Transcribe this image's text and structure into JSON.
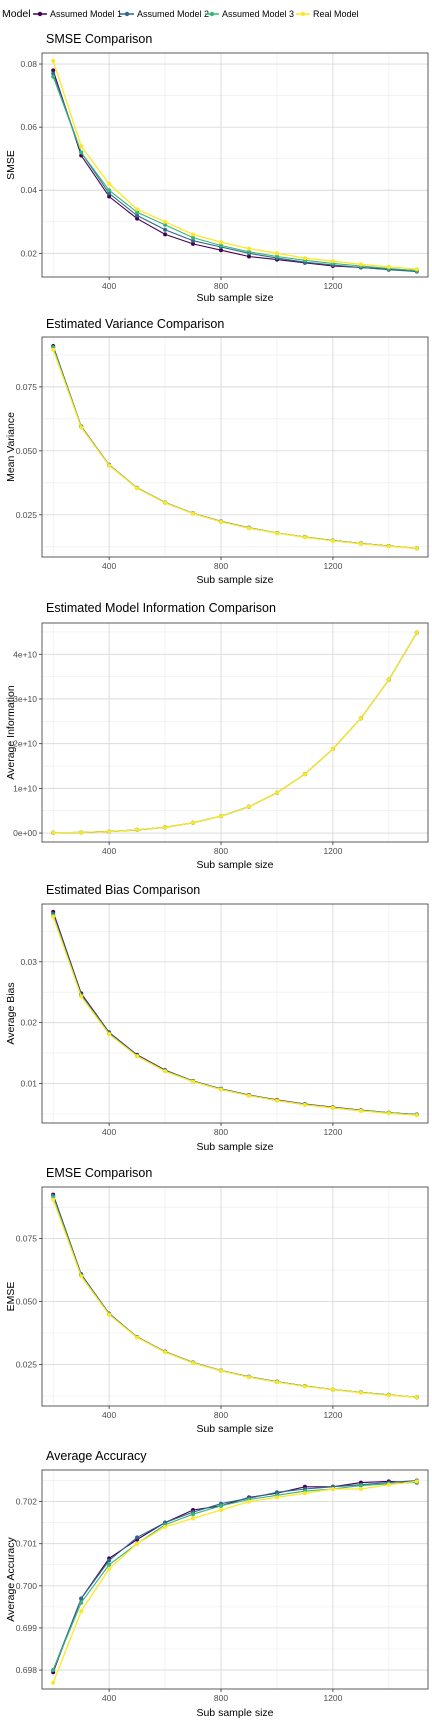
{
  "legend": {
    "title": "Model",
    "items": [
      {
        "label": "Assumed Model 1",
        "color": "#440154"
      },
      {
        "label": "Assumed Model 2",
        "color": "#31688E"
      },
      {
        "label": "Assumed Model 3",
        "color": "#35B779"
      },
      {
        "label": "Real Model",
        "color": "#FDE725"
      }
    ]
  },
  "chart_data": [
    {
      "type": "line",
      "title": "SMSE Comparison",
      "xlabel": "Sub sample size",
      "ylabel": "SMSE",
      "xlim": [
        160,
        1540
      ],
      "ylim": [
        0.0125,
        0.0835
      ],
      "xticks": [
        400,
        800,
        1200
      ],
      "xtick_labels": [
        "400",
        "800",
        "1200"
      ],
      "yticks": [
        0.02,
        0.04,
        0.06,
        0.08
      ],
      "ytick_labels": [
        "0.02",
        "0.04",
        "0.06",
        "0.08"
      ],
      "grid": true,
      "x": [
        200,
        300,
        400,
        500,
        600,
        700,
        800,
        900,
        1000,
        1100,
        1200,
        1300,
        1400,
        1500
      ],
      "series": [
        {
          "name": "Assumed Model 1",
          "values": [
            0.078,
            0.051,
            0.038,
            0.031,
            0.026,
            0.023,
            0.021,
            0.019,
            0.018,
            0.017,
            0.016,
            0.0155,
            0.015,
            0.0145
          ]
        },
        {
          "name": "Assumed Model 2",
          "values": [
            0.077,
            0.052,
            0.039,
            0.032,
            0.0275,
            0.024,
            0.022,
            0.02,
            0.0185,
            0.0172,
            0.0163,
            0.0155,
            0.0148,
            0.0142
          ]
        },
        {
          "name": "Assumed Model 3",
          "values": [
            0.076,
            0.052,
            0.04,
            0.033,
            0.029,
            0.025,
            0.0225,
            0.0205,
            0.019,
            0.0178,
            0.0168,
            0.016,
            0.0152,
            0.0145
          ]
        },
        {
          "name": "Real Model",
          "values": [
            0.081,
            0.054,
            0.042,
            0.034,
            0.03,
            0.026,
            0.0235,
            0.0215,
            0.02,
            0.0185,
            0.0175,
            0.0165,
            0.0157,
            0.015
          ]
        }
      ]
    },
    {
      "type": "line",
      "title": "Estimated Variance Comparison",
      "xlabel": "Sub sample size",
      "ylabel": "Mean Variance",
      "xlim": [
        160,
        1540
      ],
      "ylim": [
        0.0085,
        0.0945
      ],
      "xticks": [
        400,
        800,
        1200
      ],
      "xtick_labels": [
        "400",
        "800",
        "1200"
      ],
      "yticks": [
        0.025,
        0.05,
        0.075
      ],
      "ytick_labels": [
        "0.025",
        "0.050",
        "0.075"
      ],
      "grid": true,
      "x": [
        200,
        300,
        400,
        500,
        600,
        700,
        800,
        900,
        1000,
        1100,
        1200,
        1300,
        1400,
        1500
      ],
      "series": [
        {
          "name": "Assumed Model 1",
          "values": [
            0.091,
            0.0595,
            0.0445,
            0.0355,
            0.0298,
            0.0256,
            0.0224,
            0.0199,
            0.0179,
            0.0163,
            0.0149,
            0.0138,
            0.0128,
            0.0119
          ]
        },
        {
          "name": "Assumed Model 2",
          "values": [
            0.0905,
            0.0595,
            0.0445,
            0.0355,
            0.0298,
            0.0256,
            0.0224,
            0.0199,
            0.0179,
            0.0163,
            0.0149,
            0.0138,
            0.0128,
            0.0119
          ]
        },
        {
          "name": "Assumed Model 3",
          "values": [
            0.0905,
            0.0592,
            0.0443,
            0.0355,
            0.0297,
            0.0255,
            0.0223,
            0.0198,
            0.0179,
            0.0163,
            0.0149,
            0.0137,
            0.0128,
            0.0119
          ]
        },
        {
          "name": "Real Model",
          "values": [
            0.0895,
            0.0592,
            0.0443,
            0.0354,
            0.0297,
            0.0255,
            0.0223,
            0.0198,
            0.0178,
            0.0162,
            0.0148,
            0.0137,
            0.0127,
            0.0119
          ]
        }
      ]
    },
    {
      "type": "line",
      "title": "Estimated Model Information Comparison",
      "xlabel": "Sub sample size",
      "ylabel": "Average Information",
      "xlim": [
        160,
        1540
      ],
      "ylim": [
        -2000000000,
        47000000000
      ],
      "xticks": [
        400,
        800,
        1200
      ],
      "xtick_labels": [
        "400",
        "800",
        "1200"
      ],
      "yticks": [
        0,
        10000000000,
        20000000000,
        30000000000,
        40000000000
      ],
      "ytick_labels": [
        "0e+00",
        "1e+10",
        "2e+10",
        "3e+10",
        "4e+10"
      ],
      "grid": true,
      "x": [
        200,
        300,
        400,
        500,
        600,
        700,
        800,
        900,
        1000,
        1100,
        1200,
        1300,
        1400,
        1500
      ],
      "series": [
        {
          "name": "Assumed Model 1",
          "values": [
            50000000,
            150000000,
            330000000,
            700000000,
            1300000000,
            2300000000,
            3800000000,
            5900000000,
            9000000000,
            13200000000,
            18800000000,
            25700000000,
            34300000000,
            44800000000
          ]
        },
        {
          "name": "Assumed Model 2",
          "values": [
            50000000,
            150000000,
            330000000,
            700000000,
            1300000000,
            2300000000,
            3800000000,
            5900000000,
            9000000000,
            13200000000,
            18800000000,
            25700000000,
            34300000000,
            44800000000
          ]
        },
        {
          "name": "Assumed Model 3",
          "values": [
            50000000,
            150000000,
            330000000,
            700000000,
            1300000000,
            2300000000,
            3800000000,
            5900000000,
            9000000000,
            13200000000,
            18800000000,
            25700000000,
            34300000000,
            44800000000
          ]
        },
        {
          "name": "Real Model",
          "values": [
            50000000,
            150000000,
            330000000,
            700000000,
            1300000000,
            2300000000,
            3800000000,
            5900000000,
            9000000000,
            13200000000,
            18800000000,
            25700000000,
            34300000000,
            44800000000
          ]
        }
      ]
    },
    {
      "type": "line",
      "title": "Estimated Bias Comparison",
      "xlabel": "Sub sample size",
      "ylabel": "Average Bias",
      "xlim": [
        160,
        1540
      ],
      "ylim": [
        0.0035,
        0.0395
      ],
      "xticks": [
        400,
        800,
        1200
      ],
      "xtick_labels": [
        "400",
        "800",
        "1200"
      ],
      "yticks": [
        0.01,
        0.02,
        0.03
      ],
      "ytick_labels": [
        "0.01",
        "0.02",
        "0.03"
      ],
      "grid": true,
      "x": [
        200,
        300,
        400,
        500,
        600,
        700,
        800,
        900,
        1000,
        1100,
        1200,
        1300,
        1400,
        1500
      ],
      "series": [
        {
          "name": "Assumed Model 1",
          "values": [
            0.0382,
            0.0248,
            0.0184,
            0.0147,
            0.0122,
            0.0104,
            0.0091,
            0.0081,
            0.0073,
            0.0066,
            0.0061,
            0.0056,
            0.0052,
            0.0049
          ]
        },
        {
          "name": "Assumed Model 2",
          "values": [
            0.0379,
            0.0246,
            0.0183,
            0.0146,
            0.0121,
            0.0104,
            0.0091,
            0.0081,
            0.0072,
            0.0066,
            0.006,
            0.0056,
            0.0052,
            0.0049
          ]
        },
        {
          "name": "Assumed Model 3",
          "values": [
            0.0376,
            0.0244,
            0.0182,
            0.0145,
            0.0121,
            0.0103,
            0.009,
            0.008,
            0.0072,
            0.0065,
            0.006,
            0.0055,
            0.0052,
            0.0048
          ]
        },
        {
          "name": "Real Model",
          "values": [
            0.0374,
            0.0243,
            0.0181,
            0.0145,
            0.012,
            0.0103,
            0.009,
            0.008,
            0.0072,
            0.0065,
            0.006,
            0.0055,
            0.0051,
            0.0048
          ]
        }
      ]
    },
    {
      "type": "line",
      "title": "EMSE Comparison",
      "xlabel": "Sub sample size",
      "ylabel": "EMSE",
      "xlim": [
        160,
        1540
      ],
      "ylim": [
        0.0085,
        0.0955
      ],
      "xticks": [
        400,
        800,
        1200
      ],
      "xtick_labels": [
        "400",
        "800",
        "1200"
      ],
      "yticks": [
        0.025,
        0.05,
        0.075
      ],
      "ytick_labels": [
        "0.025",
        "0.050",
        "0.075"
      ],
      "grid": true,
      "x": [
        200,
        300,
        400,
        500,
        600,
        700,
        800,
        900,
        1000,
        1100,
        1200,
        1300,
        1400,
        1500
      ],
      "series": [
        {
          "name": "Assumed Model 1",
          "values": [
            0.0925,
            0.0608,
            0.0452,
            0.0359,
            0.0301,
            0.0258,
            0.0226,
            0.0201,
            0.0181,
            0.0164,
            0.015,
            0.0139,
            0.0129,
            0.012
          ]
        },
        {
          "name": "Assumed Model 2",
          "values": [
            0.092,
            0.0606,
            0.0451,
            0.0359,
            0.03,
            0.0258,
            0.0226,
            0.0201,
            0.0181,
            0.0164,
            0.015,
            0.0139,
            0.0129,
            0.012
          ]
        },
        {
          "name": "Assumed Model 3",
          "values": [
            0.0915,
            0.0604,
            0.045,
            0.0358,
            0.0299,
            0.0257,
            0.0225,
            0.02,
            0.018,
            0.0164,
            0.015,
            0.0139,
            0.0129,
            0.012
          ]
        },
        {
          "name": "Real Model",
          "values": [
            0.0905,
            0.06,
            0.0448,
            0.0357,
            0.0299,
            0.0256,
            0.0225,
            0.02,
            0.018,
            0.0163,
            0.015,
            0.0138,
            0.0128,
            0.012
          ]
        }
      ]
    },
    {
      "type": "line",
      "title": "Average Accuracy",
      "xlabel": "Sub sample size",
      "ylabel": "Average Accuracy",
      "xlim": [
        160,
        1540
      ],
      "ylim": [
        0.69755,
        0.70275
      ],
      "xticks": [
        400,
        800,
        1200
      ],
      "xtick_labels": [
        "400",
        "800",
        "1200"
      ],
      "yticks": [
        0.698,
        0.699,
        0.7,
        0.701,
        0.702
      ],
      "ytick_labels": [
        "0.698",
        "0.699",
        "0.700",
        "0.701",
        "0.702"
      ],
      "grid": true,
      "x": [
        200,
        300,
        400,
        500,
        600,
        700,
        800,
        900,
        1000,
        1100,
        1200,
        1300,
        1400,
        1500
      ],
      "series": [
        {
          "name": "Assumed Model 1",
          "values": [
            0.69795,
            0.6997,
            0.70065,
            0.7011,
            0.7015,
            0.7018,
            0.7019,
            0.7021,
            0.7022,
            0.70235,
            0.70235,
            0.70245,
            0.70248,
            0.70245
          ]
        },
        {
          "name": "Assumed Model 2",
          "values": [
            0.698,
            0.6997,
            0.7006,
            0.70115,
            0.7015,
            0.70175,
            0.70195,
            0.70208,
            0.70222,
            0.7023,
            0.70235,
            0.7024,
            0.70245,
            0.7025
          ]
        },
        {
          "name": "Assumed Model 3",
          "values": [
            0.698,
            0.6996,
            0.7005,
            0.701,
            0.70145,
            0.7017,
            0.7019,
            0.70205,
            0.70215,
            0.70225,
            0.7023,
            0.70238,
            0.70242,
            0.70246
          ]
        },
        {
          "name": "Real Model",
          "values": [
            0.6977,
            0.6994,
            0.7004,
            0.701,
            0.7014,
            0.7016,
            0.7018,
            0.702,
            0.7021,
            0.7022,
            0.7023,
            0.7023,
            0.7024,
            0.70248
          ]
        }
      ]
    }
  ]
}
